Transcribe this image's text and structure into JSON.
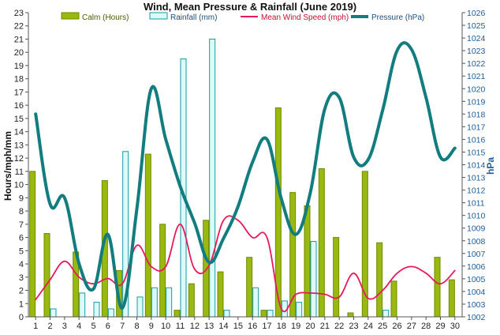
{
  "chart_data": {
    "type": "bar",
    "title": "Wind, Mean Pressure & Rainfall (June 2019)",
    "xlabel": "",
    "ylabel": "Hours/mph/mm",
    "y2label": "hPa",
    "categories": [
      "1",
      "2",
      "3",
      "4",
      "5",
      "6",
      "7",
      "8",
      "9",
      "10",
      "11",
      "12",
      "13",
      "14",
      "15",
      "16",
      "17",
      "18",
      "19",
      "20",
      "21",
      "22",
      "23",
      "24",
      "25",
      "26",
      "27",
      "28",
      "29",
      "30"
    ],
    "ylim": [
      0,
      23
    ],
    "y2lim": [
      1002,
      1026
    ],
    "yticks": [
      "0",
      "1",
      "2",
      "3",
      "4",
      "5",
      "6",
      "7",
      "8",
      "9",
      "10",
      "11",
      "12",
      "13",
      "14",
      "15",
      "16",
      "17",
      "18",
      "19",
      "20",
      "21",
      "22",
      "23"
    ],
    "y2ticks": [
      "1002",
      "1003",
      "1004",
      "1005",
      "1006",
      "1007",
      "1008",
      "1009",
      "1010",
      "1011",
      "1012",
      "1013",
      "1014",
      "1015",
      "1016",
      "1017",
      "1018",
      "1019",
      "1020",
      "1021",
      "1022",
      "1023",
      "1024",
      "1025",
      "1026"
    ],
    "legend_position": "top",
    "grid": false,
    "series": [
      {
        "name": "Calm (Hours)",
        "kind": "bar",
        "axis": "left",
        "color": "#99b911",
        "values": [
          11.0,
          6.3,
          0,
          4.9,
          0,
          10.3,
          3.5,
          0,
          12.3,
          7.0,
          0.5,
          2.5,
          7.3,
          3.4,
          0,
          4.5,
          0.5,
          15.8,
          9.4,
          8.4,
          11.2,
          6.0,
          0.3,
          11.0,
          5.6,
          2.7,
          0,
          0,
          4.5,
          2.8
        ]
      },
      {
        "name": "Rainfall (mm)",
        "kind": "bar",
        "axis": "left",
        "color": "#dcfafa",
        "values": [
          0,
          0.6,
          0,
          1.8,
          1.1,
          0.6,
          12.5,
          1.5,
          2.2,
          2.2,
          19.5,
          0,
          21.0,
          0.5,
          0,
          2.2,
          0.5,
          1.2,
          1.1,
          5.7,
          0,
          0,
          0,
          0,
          0.5,
          0,
          0,
          0,
          0,
          0
        ]
      },
      {
        "name": "Mean Wind Speed (mph)",
        "kind": "line",
        "axis": "left",
        "color": "#e8185a",
        "values": [
          1.3,
          2.8,
          4.2,
          3.0,
          2.5,
          2.9,
          2.5,
          5.4,
          3.8,
          3.8,
          7.0,
          3.6,
          3.9,
          7.3,
          7.3,
          6.0,
          6.0,
          0.6,
          1.7,
          1.8,
          1.7,
          1.5,
          3.3,
          1.4,
          2.0,
          3.3,
          3.8,
          3.3,
          2.5,
          3.5
        ]
      },
      {
        "name": "Pressure (hPa)",
        "kind": "line",
        "axis": "right",
        "color": "#127c7e",
        "values": [
          1018.0,
          1010.9,
          1011.4,
          1006.2,
          1004.2,
          1008.5,
          1002.7,
          1010.5,
          1020.0,
          1016.0,
          1012.3,
          1009.4,
          1006.3,
          1008.2,
          1010.7,
          1014.2,
          1016.0,
          1011.3,
          1008.5,
          1011.8,
          1018.4,
          1019.3,
          1014.6,
          1014.4,
          1018.3,
          1023.0,
          1023.1,
          1019.3,
          1014.6,
          1015.3
        ]
      }
    ]
  }
}
